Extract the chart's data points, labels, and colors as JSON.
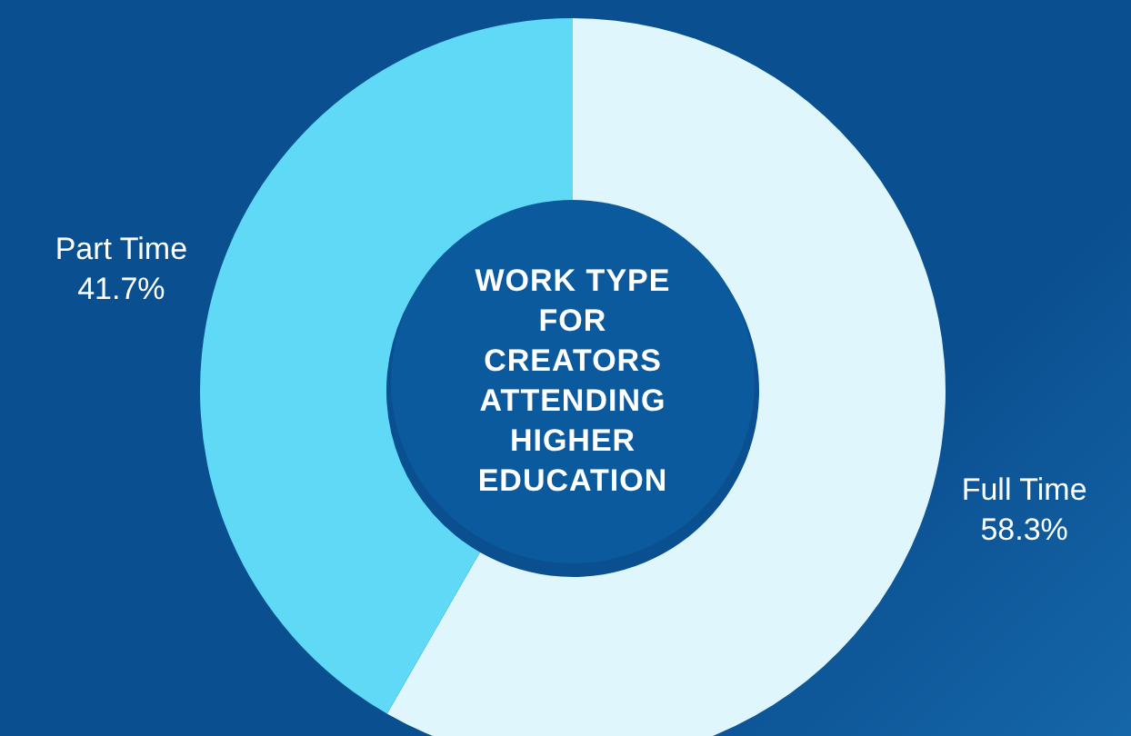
{
  "chart_data": {
    "type": "donut",
    "title": "WORK TYPE FOR CREATORS ATTENDING HIGHER EDUCATION",
    "categories": [
      "Full Time",
      "Part Time"
    ],
    "values": [
      58.3,
      41.7
    ],
    "colors": [
      "#e0f6fd",
      "#5fd9f5"
    ],
    "value_labels": [
      "58.3%",
      "41.7%"
    ]
  }
}
